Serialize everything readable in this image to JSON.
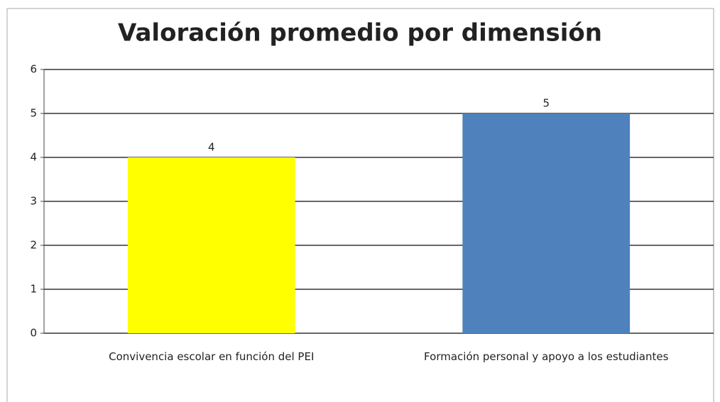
{
  "chart_data": {
    "type": "bar",
    "title": "Valoración promedio por dimensión",
    "categories": [
      "Convivencia escolar en función del PEI",
      "Formación personal y apoyo a los estudiantes"
    ],
    "values": [
      4,
      5
    ],
    "colors": [
      "#ffff00",
      "#4f81bd"
    ],
    "ylim": [
      0,
      6
    ],
    "yticks": [
      0,
      1,
      2,
      3,
      4,
      5,
      6
    ],
    "grid": true
  }
}
